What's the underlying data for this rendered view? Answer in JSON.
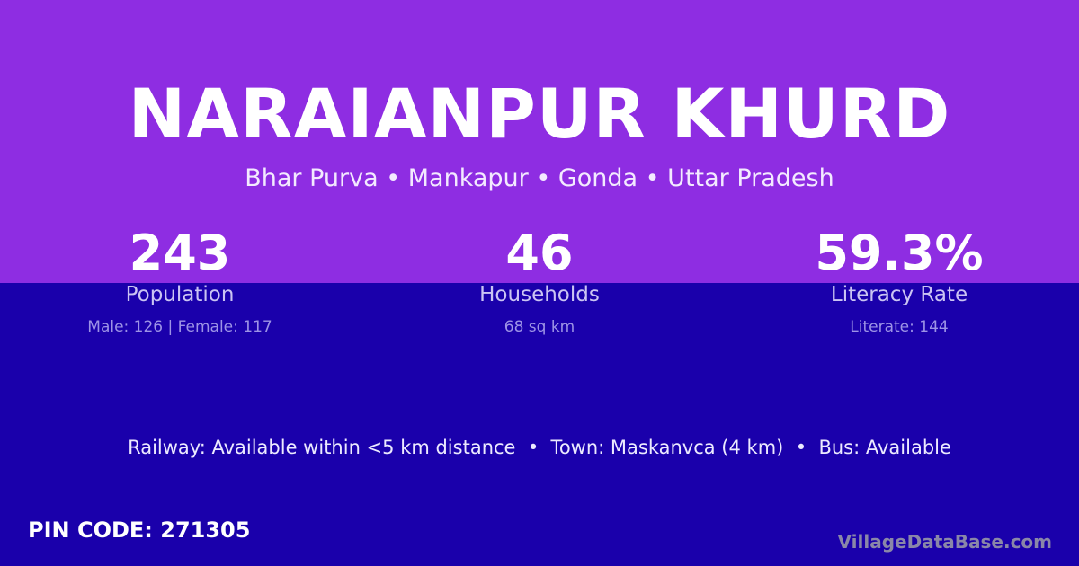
{
  "title": "NARAIANPUR KHURD",
  "subtitle": "Bhar Purva • Mankapur • Gonda • Uttar Pradesh",
  "stats": [
    {
      "value": "243",
      "label": "Population",
      "detail": "Male: 126 | Female: 117"
    },
    {
      "value": "46",
      "label": "Households",
      "detail": "68 sq km"
    },
    {
      "value": "59.3%",
      "label": "Literacy Rate",
      "detail": "Literate: 144"
    }
  ],
  "amenities": "Railway: Available within <5 km distance  •  Town: Maskanvca (4 km)  •  Bus: Available",
  "pin_code": "PIN CODE: 271305",
  "brand": "VillageDataBase.com",
  "colors": {
    "top": "#8e2de2",
    "bottom": "#1a00ab"
  }
}
